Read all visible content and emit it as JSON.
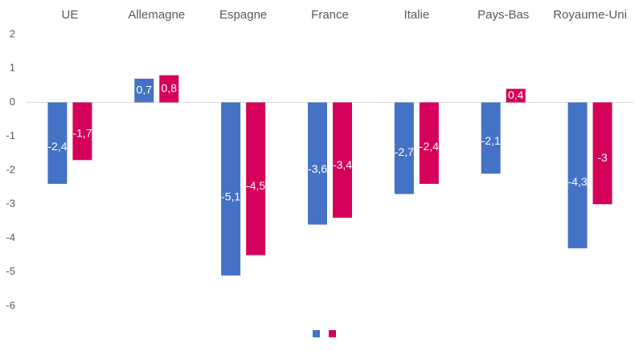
{
  "chart_data": {
    "type": "bar",
    "categories": [
      "UE",
      "Allemagne",
      "Espagne",
      "France",
      "Italie",
      "Pays-Bas",
      "Royaume-Uni"
    ],
    "series": [
      {
        "values": [
          -2.4,
          0.7,
          -5.1,
          -3.6,
          -2.7,
          -2.1,
          -4.3
        ],
        "color": "#4472C4"
      },
      {
        "values": [
          -1.7,
          0.8,
          -4.5,
          -3.4,
          -2.4,
          0.4,
          -3.0
        ],
        "color": "#D5005A"
      }
    ],
    "data_labels": [
      [
        "-2,4",
        "0,7",
        "-5,1",
        "-3,6",
        "-2,7",
        "-2,1",
        "-4,3"
      ],
      [
        "-1,7",
        "0,8",
        "-4,5",
        "-3,4",
        "-2,4",
        "0,4",
        "-3"
      ]
    ],
    "y_ticks": [
      2,
      1,
      0,
      -1,
      -2,
      -3,
      -4,
      -5,
      -6
    ],
    "y_tick_labels": [
      "2",
      "1",
      "0",
      "-1",
      "-2",
      "-3",
      "-4",
      "-5",
      "-6"
    ],
    "ylim": [
      -6,
      2
    ],
    "category_axis_position": "top",
    "grid": false,
    "legend": "bottom-center",
    "title": "",
    "xlabel": "",
    "ylabel": ""
  }
}
